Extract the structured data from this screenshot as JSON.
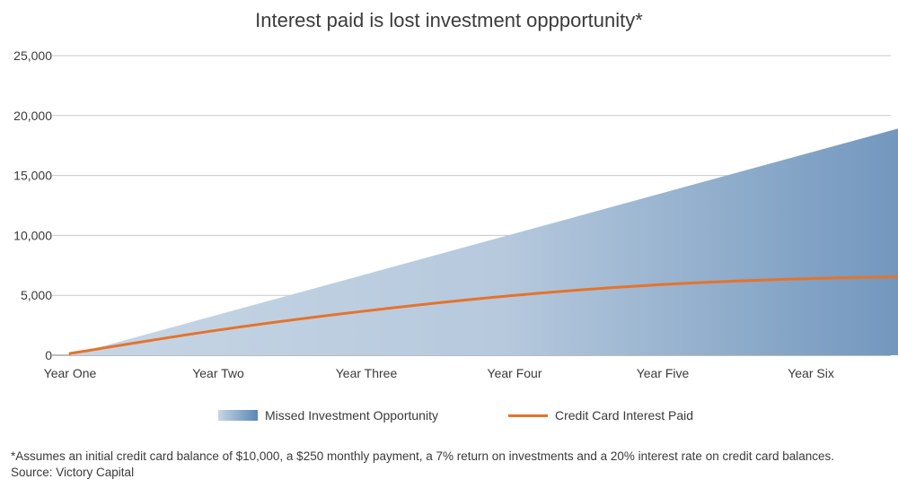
{
  "chart_data": {
    "type": "area",
    "title": "Interest paid is lost investment oppportunity*",
    "categories": [
      "Year One",
      "Year Two",
      "Year Three",
      "Year Four",
      "Year Five",
      "Year Six"
    ],
    "ylim": [
      0,
      25000
    ],
    "yticks": [
      "0",
      "5,000",
      "10,000",
      "15,000",
      "20,000",
      "25,000"
    ],
    "grid": true,
    "legend_position": "bottom",
    "series": [
      {
        "name": "Missed Investment Opportunity",
        "kind": "area",
        "color_start": "#c7d6e5",
        "color_end": "#5b86b3",
        "x": [
          0,
          6.5
        ],
        "values": [
          0,
          22000
        ]
      },
      {
        "name": "Credit Card Interest Paid",
        "kind": "line",
        "color": "#e5732b",
        "x": [
          0,
          1,
          2,
          3,
          4,
          5,
          6,
          6.5
        ],
        "values": [
          150,
          2100,
          3700,
          5000,
          5900,
          6400,
          6600,
          6600
        ]
      }
    ]
  },
  "footnote": {
    "line1": "*Assumes an initial credit card balance of $10,000, a $250 monthly payment, a 7% return on investments and a 20% interest rate on credit card balances.",
    "line2": "Source: Victory Capital"
  }
}
